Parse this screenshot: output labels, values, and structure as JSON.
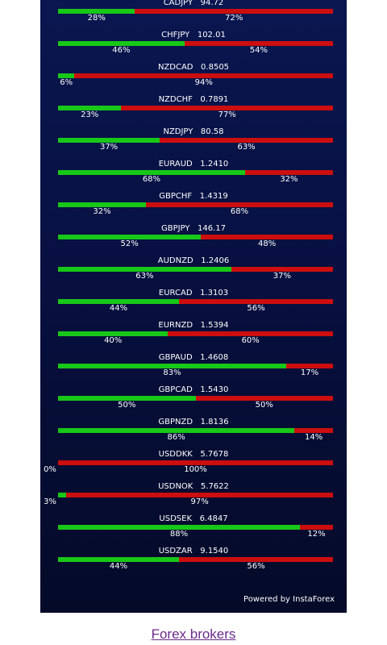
{
  "widget": {
    "powered_by": "Powered by InstaForex",
    "colors": {
      "buy": "#18c818",
      "sell": "#cc0e0e",
      "background": "#071040"
    },
    "pairs": [
      {
        "symbol": "CADJPY",
        "price": "94.72",
        "buy": 28,
        "sell": 72,
        "buy_label": "28%",
        "sell_label": "72%"
      },
      {
        "symbol": "CHFJPY",
        "price": "102.01",
        "buy": 46,
        "sell": 54,
        "buy_label": "46%",
        "sell_label": "54%"
      },
      {
        "symbol": "NZDCAD",
        "price": "0.8505",
        "buy": 6,
        "sell": 94,
        "buy_label": "6%",
        "sell_label": "94%"
      },
      {
        "symbol": "NZDCHF",
        "price": "0.7891",
        "buy": 23,
        "sell": 77,
        "buy_label": "23%",
        "sell_label": "77%"
      },
      {
        "symbol": "NZDJPY",
        "price": "80.58",
        "buy": 37,
        "sell": 63,
        "buy_label": "37%",
        "sell_label": "63%"
      },
      {
        "symbol": "EURAUD",
        "price": "1.2410",
        "buy": 68,
        "sell": 32,
        "buy_label": "68%",
        "sell_label": "32%"
      },
      {
        "symbol": "GBPCHF",
        "price": "1.4319",
        "buy": 32,
        "sell": 68,
        "buy_label": "32%",
        "sell_label": "68%"
      },
      {
        "symbol": "GBPJPY",
        "price": "146.17",
        "buy": 52,
        "sell": 48,
        "buy_label": "52%",
        "sell_label": "48%"
      },
      {
        "symbol": "AUDNZD",
        "price": "1.2406",
        "buy": 63,
        "sell": 37,
        "buy_label": "63%",
        "sell_label": "37%"
      },
      {
        "symbol": "EURCAD",
        "price": "1.3103",
        "buy": 44,
        "sell": 56,
        "buy_label": "44%",
        "sell_label": "56%"
      },
      {
        "symbol": "EURNZD",
        "price": "1.5394",
        "buy": 40,
        "sell": 60,
        "buy_label": "40%",
        "sell_label": "60%"
      },
      {
        "symbol": "GBPAUD",
        "price": "1.4608",
        "buy": 83,
        "sell": 17,
        "buy_label": "83%",
        "sell_label": "17%"
      },
      {
        "symbol": "GBPCAD",
        "price": "1.5430",
        "buy": 50,
        "sell": 50,
        "buy_label": "50%",
        "sell_label": "50%"
      },
      {
        "symbol": "GBPNZD",
        "price": "1.8136",
        "buy": 86,
        "sell": 14,
        "buy_label": "86%",
        "sell_label": "14%"
      },
      {
        "symbol": "USDDKK",
        "price": "5.7678",
        "buy": 0,
        "sell": 100,
        "buy_label": "0%",
        "sell_label": "100%"
      },
      {
        "symbol": "USDNOK",
        "price": "5.7622",
        "buy": 3,
        "sell": 97,
        "buy_label": "3%",
        "sell_label": "97%"
      },
      {
        "symbol": "USDSEK",
        "price": "6.4847",
        "buy": 88,
        "sell": 12,
        "buy_label": "88%",
        "sell_label": "12%"
      },
      {
        "symbol": "USDZAR",
        "price": "9.1540",
        "buy": 44,
        "sell": 56,
        "buy_label": "44%",
        "sell_label": "56%"
      }
    ]
  },
  "footer": {
    "link_text": "Forex brokers"
  }
}
